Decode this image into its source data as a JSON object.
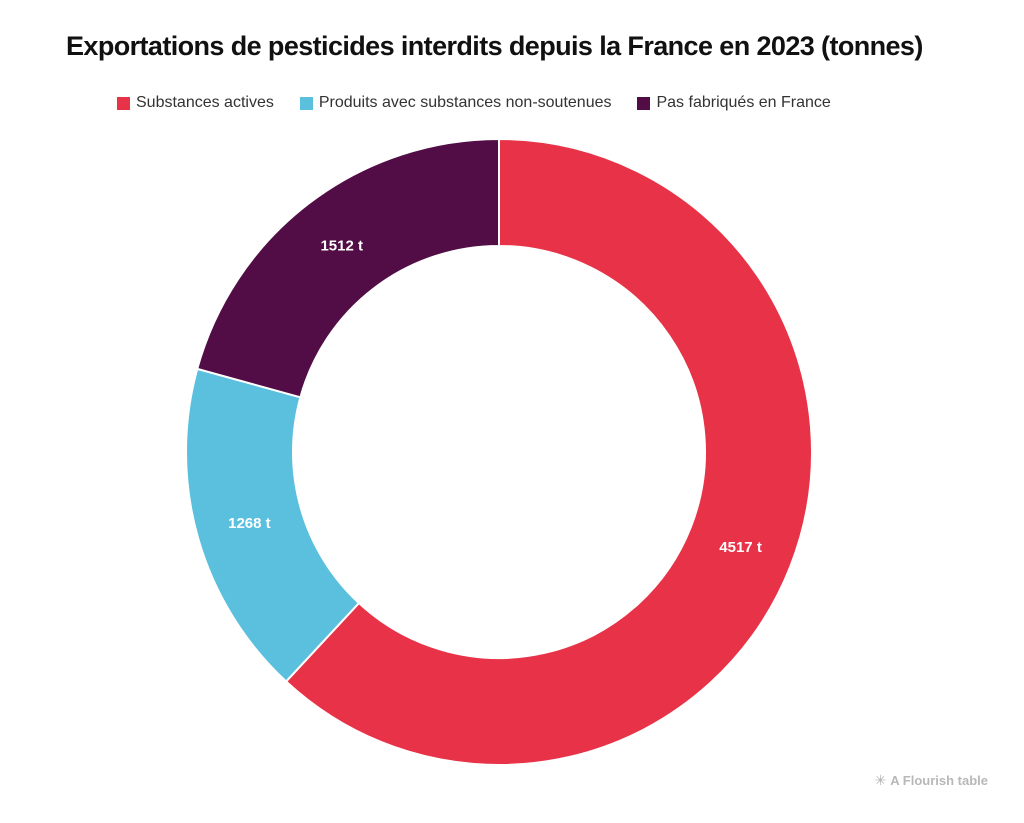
{
  "chart_data": {
    "type": "pie",
    "variant": "donut",
    "title": "Exportations de pesticides interdits depuis la France en 2023 (tonnes)",
    "categories": [
      "Substances actives",
      "Produits avec substances non-soutenues",
      "Pas fabriqués en France"
    ],
    "values": [
      4517,
      1268,
      1512
    ],
    "value_labels": [
      "4517 t",
      "1268 t",
      "1512 t"
    ],
    "colors": [
      "#e83247",
      "#5bc0de",
      "#520d46"
    ],
    "unit": "t",
    "legend_position": "top"
  },
  "credit": {
    "icon": "flourish-asterisk-icon",
    "text": "A Flourish table"
  }
}
